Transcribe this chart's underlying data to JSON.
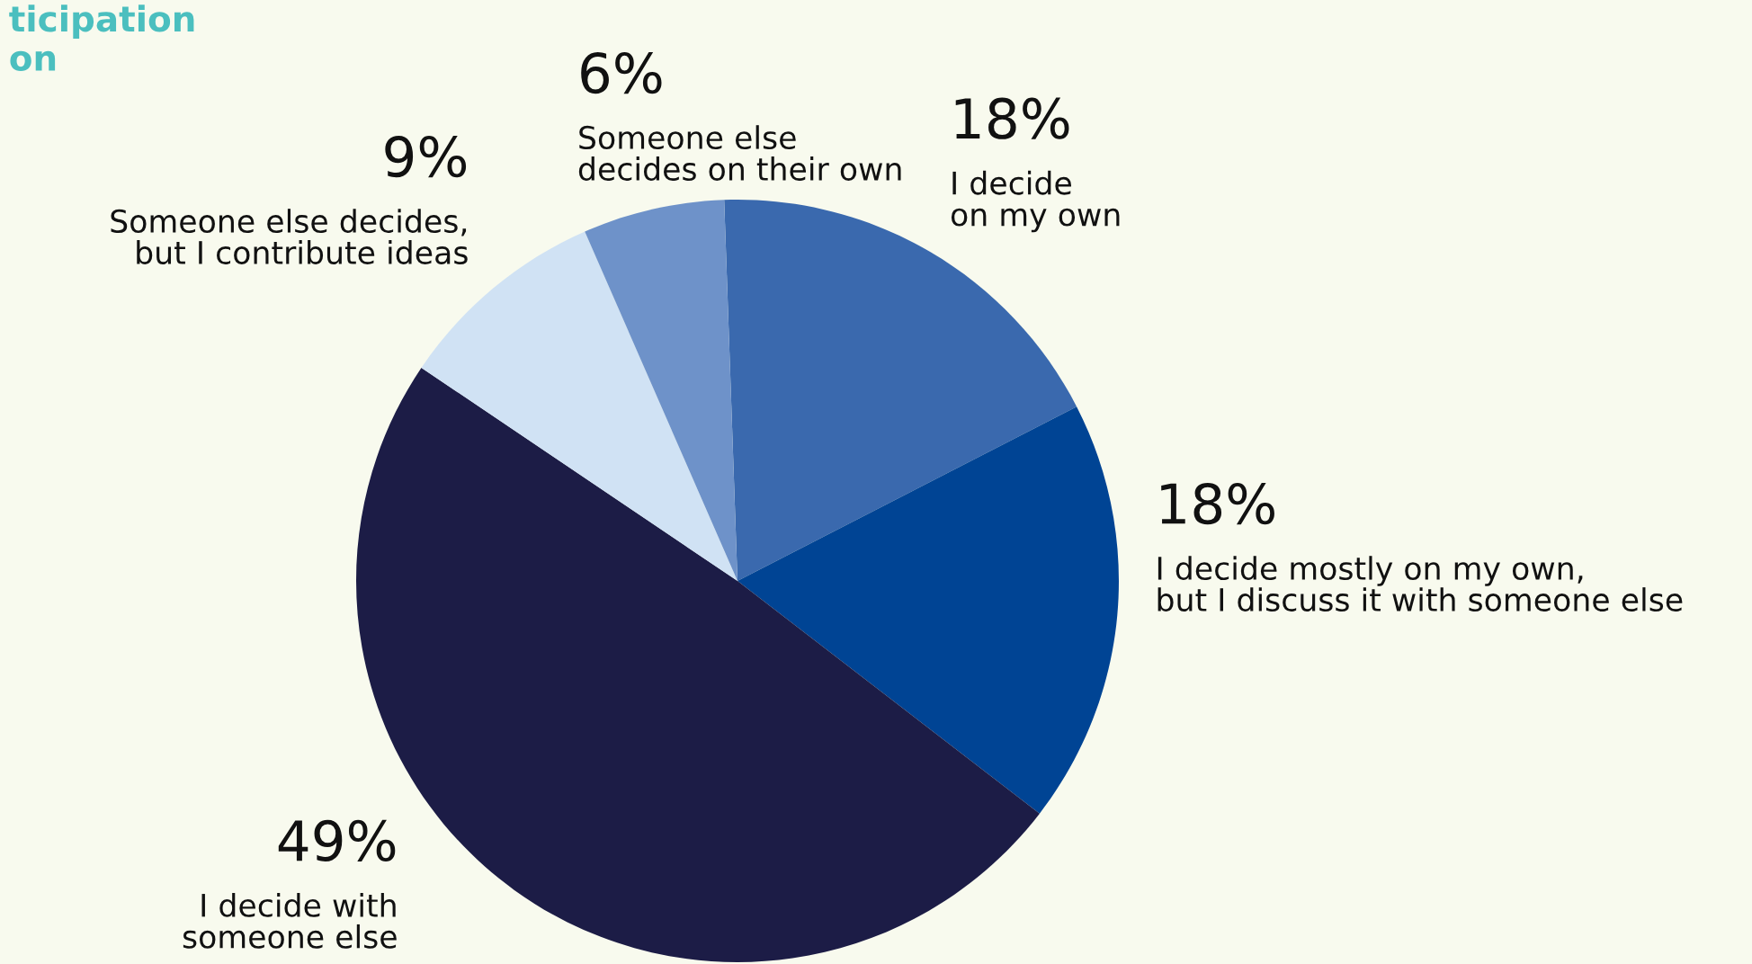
{
  "chart_data": {
    "type": "pie",
    "title": "ticipation\non",
    "categories": [
      "I decide\non my own",
      "I decide mostly on my own,\nbut I discuss it with someone else",
      "I decide with\nsomeone else",
      "Someone else decides,\nbut I contribute ideas",
      "Someone else\ndecides on their own"
    ],
    "values": [
      18,
      18,
      49,
      9,
      6
    ],
    "value_labels": [
      "18%",
      "18%",
      "49%",
      "9%",
      "6%"
    ],
    "colors": [
      "#3a69ae",
      "#004494",
      "#1c1c46",
      "#d0e2f4",
      "#6e92c9"
    ],
    "legend": false
  }
}
